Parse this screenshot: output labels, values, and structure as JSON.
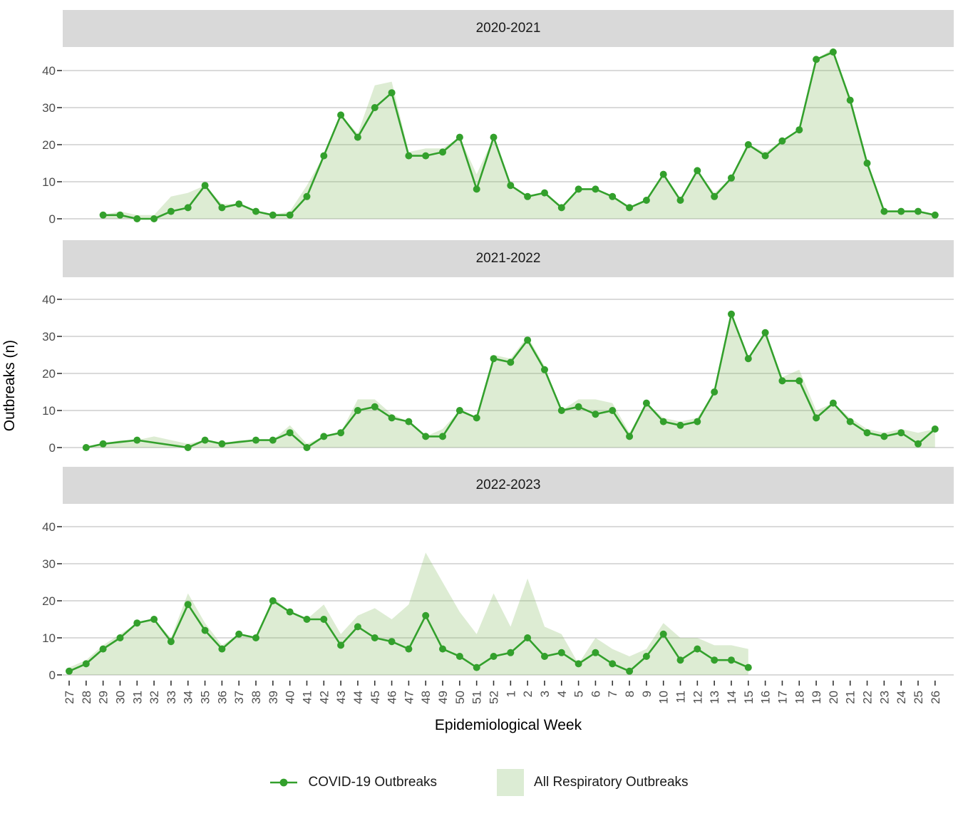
{
  "figure": {
    "y_axis_title": "Outbreaks (n)",
    "x_axis_title": "Epidemiological Week",
    "legend": {
      "covid_label": "COVID-19 Outbreaks",
      "area_label": "All Respiratory Outbreaks"
    }
  },
  "colors": {
    "line_green": "#33a02c",
    "area_green_base": "#86bb62",
    "area_opacity": 0.28,
    "area_green_solid": "#dcecd4",
    "header_bg": "#d9d9d9",
    "grid": "#d5d5d5",
    "axis_text": "#4d4d4d",
    "tick_mark": "#333333"
  },
  "chart_data": {
    "type": "line+area, 3 stacked facets sharing axes",
    "x_weeks": [
      "27",
      "28",
      "29",
      "30",
      "31",
      "32",
      "33",
      "34",
      "35",
      "36",
      "37",
      "38",
      "39",
      "40",
      "41",
      "42",
      "43",
      "44",
      "45",
      "46",
      "47",
      "48",
      "49",
      "50",
      "51",
      "52",
      "1",
      "2",
      "3",
      "4",
      "5",
      "6",
      "7",
      "8",
      "9",
      "10",
      "11",
      "12",
      "13",
      "14",
      "15",
      "16",
      "17",
      "18",
      "19",
      "20",
      "21",
      "22",
      "23",
      "24",
      "25",
      "26"
    ],
    "y_gridlines": [
      0,
      10,
      20,
      30,
      40
    ],
    "ylim": [
      -4,
      46
    ],
    "legend_position": "bottom",
    "series_names": [
      "COVID-19 Outbreaks",
      "All Respiratory Outbreaks"
    ],
    "panels": [
      {
        "title": "2020-2021",
        "covid": [
          null,
          null,
          1,
          1,
          0,
          0,
          2,
          3,
          9,
          3,
          4,
          2,
          1,
          1,
          6,
          17,
          28,
          22,
          30,
          34,
          17,
          17,
          18,
          22,
          8,
          22,
          9,
          6,
          7,
          3,
          8,
          8,
          6,
          3,
          5,
          12,
          5,
          13,
          6,
          11,
          20,
          17,
          21,
          24,
          43,
          45,
          32,
          15,
          2,
          2,
          2,
          1
        ],
        "all_respiratory": [
          null,
          null,
          1,
          2,
          1,
          1,
          6,
          7,
          9,
          4,
          4,
          2,
          1,
          2,
          9,
          17,
          28,
          23,
          36,
          37,
          18,
          19,
          19,
          22,
          12,
          22,
          9,
          6,
          7,
          3,
          8,
          8,
          6,
          3,
          5,
          12,
          5,
          13,
          7,
          11,
          20,
          18,
          21,
          24,
          43,
          46,
          32,
          15,
          2,
          2,
          2,
          1
        ]
      },
      {
        "title": "2021-2022",
        "covid": [
          null,
          0,
          1,
          null,
          2,
          null,
          null,
          0,
          2,
          1,
          null,
          2,
          2,
          4,
          0,
          3,
          4,
          10,
          11,
          8,
          7,
          3,
          3,
          10,
          8,
          24,
          23,
          29,
          21,
          10,
          11,
          9,
          10,
          3,
          12,
          7,
          6,
          7,
          15,
          36,
          24,
          31,
          18,
          18,
          8,
          12,
          7,
          4,
          3,
          4,
          1,
          5
        ],
        "all_respiratory": [
          null,
          0,
          1,
          2,
          2,
          3,
          2,
          1,
          2,
          1,
          2,
          2,
          2,
          6,
          1,
          3,
          4,
          13,
          13,
          9,
          7,
          3,
          5,
          10,
          8,
          25,
          24,
          30,
          22,
          10,
          13,
          13,
          12,
          4,
          12,
          8,
          7,
          8,
          15,
          36,
          24,
          31,
          19,
          21,
          10,
          12,
          8,
          5,
          4,
          5,
          4,
          5
        ]
      },
      {
        "title": "2022-2023",
        "covid": [
          1,
          3,
          7,
          10,
          14,
          15,
          9,
          19,
          12,
          7,
          11,
          10,
          20,
          17,
          15,
          15,
          8,
          13,
          10,
          9,
          7,
          16,
          7,
          5,
          2,
          5,
          6,
          10,
          5,
          6,
          3,
          6,
          3,
          1,
          5,
          11,
          4,
          7,
          4,
          4,
          2,
          null,
          null,
          null,
          null,
          null,
          null,
          null,
          null,
          null,
          null,
          null
        ],
        "all_respiratory": [
          2,
          4,
          8,
          11,
          14,
          15,
          10,
          22,
          14,
          8,
          11,
          10,
          21,
          17,
          15,
          19,
          11,
          16,
          18,
          15,
          19,
          33,
          25,
          17,
          11,
          22,
          13,
          26,
          13,
          11,
          3,
          10,
          7,
          5,
          7,
          14,
          10,
          10,
          8,
          8,
          7,
          null,
          null,
          null,
          null,
          null,
          null,
          null,
          null,
          null,
          null,
          null
        ]
      }
    ]
  }
}
